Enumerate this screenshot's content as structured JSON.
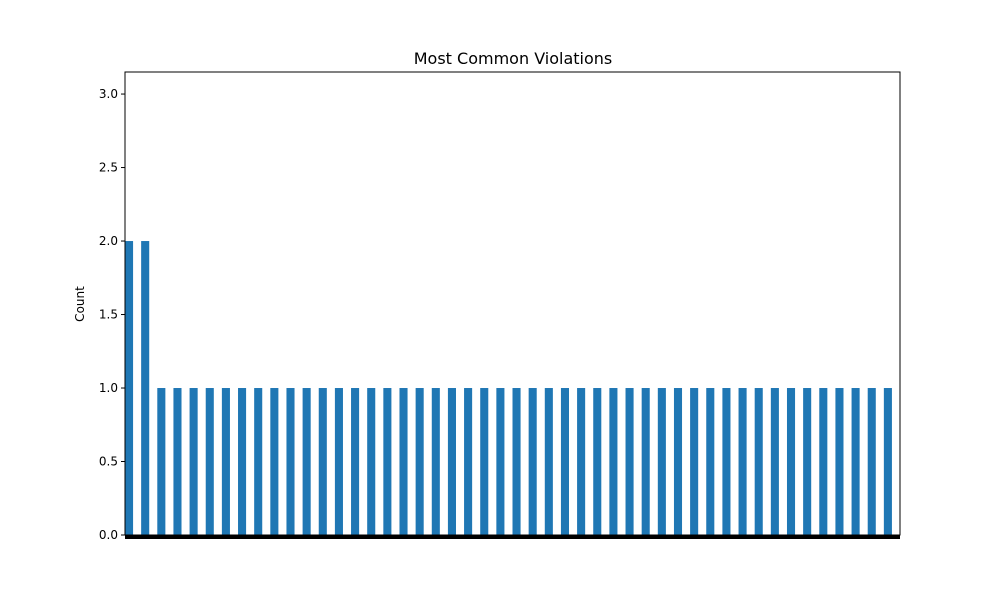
{
  "chart_data": {
    "type": "bar",
    "title": "Most Common Violations",
    "xlabel": "",
    "ylabel": "Count",
    "ylim": [
      0,
      3.15
    ],
    "yticks": [
      "0.0",
      "0.5",
      "1.0",
      "1.5",
      "2.0",
      "2.5",
      "3.0"
    ],
    "bar_color": "#1f77b4",
    "grid": false,
    "legend": "none",
    "categories": [
      "",
      "",
      "",
      "",
      "",
      "",
      "",
      "",
      "",
      "",
      "",
      "",
      "",
      "",
      "",
      "",
      "",
      "",
      "",
      "",
      "",
      "",
      "",
      "",
      "",
      "",
      "",
      "",
      "",
      "",
      "",
      "",
      "",
      "",
      "",
      "",
      "",
      "",
      "",
      "",
      "",
      "",
      "",
      "",
      "",
      "",
      "",
      ""
    ],
    "values": [
      2,
      2,
      1,
      1,
      1,
      1,
      1,
      1,
      1,
      1,
      1,
      1,
      1,
      1,
      1,
      1,
      1,
      1,
      1,
      1,
      1,
      1,
      1,
      1,
      1,
      1,
      1,
      1,
      1,
      1,
      1,
      1,
      1,
      1,
      1,
      1,
      1,
      1,
      1,
      1,
      1,
      1,
      1,
      1,
      1,
      1,
      1,
      1
    ]
  }
}
